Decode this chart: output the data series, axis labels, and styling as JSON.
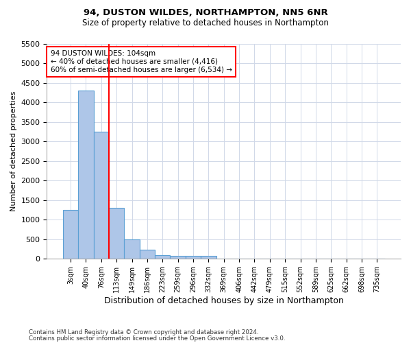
{
  "title1": "94, DUSTON WILDES, NORTHAMPTON, NN5 6NR",
  "title2": "Size of property relative to detached houses in Northampton",
  "xlabel": "Distribution of detached houses by size in Northampton",
  "ylabel": "Number of detached properties",
  "footnote1": "Contains HM Land Registry data © Crown copyright and database right 2024.",
  "footnote2": "Contains public sector information licensed under the Open Government Licence v3.0.",
  "bin_labels": [
    "3sqm",
    "40sqm",
    "76sqm",
    "113sqm",
    "149sqm",
    "186sqm",
    "223sqm",
    "259sqm",
    "296sqm",
    "332sqm",
    "369sqm",
    "406sqm",
    "442sqm",
    "479sqm",
    "515sqm",
    "552sqm",
    "589sqm",
    "625sqm",
    "662sqm",
    "698sqm",
    "735sqm"
  ],
  "bar_values": [
    1250,
    4300,
    3250,
    1300,
    500,
    225,
    100,
    75,
    75,
    75,
    0,
    0,
    0,
    0,
    0,
    0,
    0,
    0,
    0,
    0,
    0
  ],
  "bar_color": "#aec6e8",
  "bar_edge_color": "#5a9fd4",
  "vline_color": "red",
  "vline_pos": 2.5,
  "ylim": [
    0,
    5500
  ],
  "yticks": [
    0,
    500,
    1000,
    1500,
    2000,
    2500,
    3000,
    3500,
    4000,
    4500,
    5000,
    5500
  ],
  "annotation_line1": "94 DUSTON WILDES: 104sqm",
  "annotation_line2": "← 40% of detached houses are smaller (4,416)",
  "annotation_line3": "60% of semi-detached houses are larger (6,534) →",
  "annotation_box_color": "white",
  "annotation_box_edge": "red"
}
